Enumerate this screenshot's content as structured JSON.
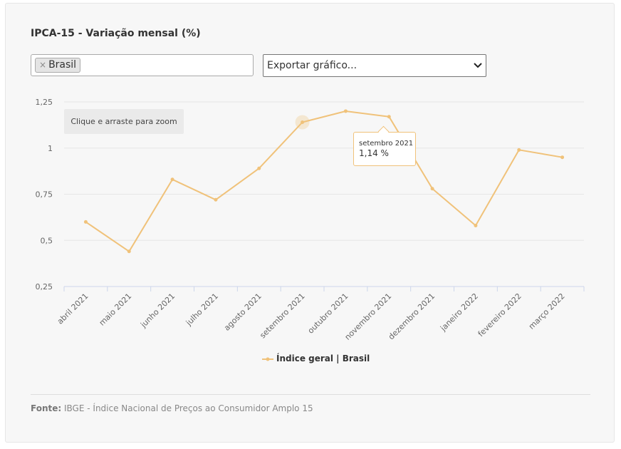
{
  "chart_data": {
    "type": "line",
    "title": "IPCA-15 - Variação mensal (%)",
    "categories": [
      "abril 2021",
      "maio 2021",
      "junho 2021",
      "julho 2021",
      "agosto 2021",
      "setembro 2021",
      "outubro 2021",
      "novembro 2021",
      "dezembro 2021",
      "janeiro 2022",
      "fevereiro 2022",
      "março 2022"
    ],
    "series": [
      {
        "name": "Índice geral | Brasil",
        "values": [
          0.6,
          0.44,
          0.83,
          0.72,
          0.89,
          1.14,
          1.2,
          1.17,
          0.78,
          0.58,
          0.99,
          0.95
        ]
      }
    ],
    "ylim": [
      0.25,
      1.25
    ],
    "yticks": [
      1.25,
      1,
      0.75,
      0.5,
      0.25
    ],
    "ytick_labels": [
      "1,25",
      "1",
      "0,75",
      "0,5",
      "0,25"
    ],
    "xlabel": "",
    "ylabel": "",
    "grid": true,
    "legend_position": "bottom-center",
    "color": "#f0c27a",
    "highlighted_index": 5
  },
  "filters": {
    "selected_chip": "Brasil",
    "chip_remove": "×"
  },
  "export": {
    "label": "Exportar gráfico..."
  },
  "zoom_hint": "Clique e arraste para zoom",
  "tooltip": {
    "date": "setembro 2021",
    "value": "1,14 %"
  },
  "legend": {
    "label": "Índice geral | Brasil"
  },
  "source": {
    "label": "Fonte:",
    "text": "IBGE - Índice Nacional de Preços ao Consumidor Amplo 15"
  }
}
